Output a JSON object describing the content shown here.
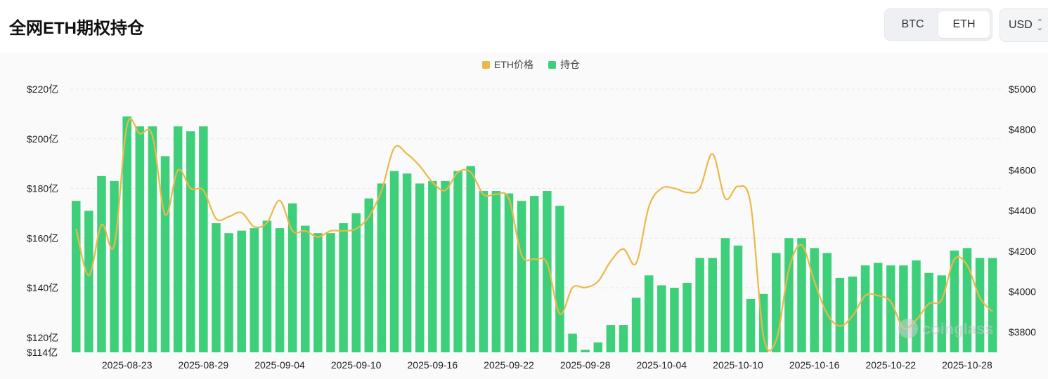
{
  "header": {
    "title": "全网ETH期权持仓",
    "tabs": [
      {
        "label": "BTC",
        "active": false
      },
      {
        "label": "ETH",
        "active": true
      }
    ],
    "currency": "USD"
  },
  "watermark": "coinglass",
  "chart_data": {
    "type": "bar+line",
    "legend": [
      {
        "name": "ETH价格",
        "color": "#e9b949"
      },
      {
        "name": "持仓",
        "color": "#3ecf7a"
      }
    ],
    "left_axis": {
      "ticks": [
        {
          "value": 114,
          "label": "$114亿"
        },
        {
          "value": 120,
          "label": "$120亿"
        },
        {
          "value": 140,
          "label": "$140亿"
        },
        {
          "value": 160,
          "label": "$160亿"
        },
        {
          "value": 180,
          "label": "$180亿"
        },
        {
          "value": 200,
          "label": "$200亿"
        },
        {
          "value": 220,
          "label": "$220亿"
        }
      ],
      "range": [
        114,
        220
      ]
    },
    "right_axis": {
      "ticks": [
        {
          "value": 3800,
          "label": "$3800"
        },
        {
          "value": 4000,
          "label": "$4000"
        },
        {
          "value": 4200,
          "label": "$4200"
        },
        {
          "value": 4400,
          "label": "$4400"
        },
        {
          "value": 4600,
          "label": "$4600"
        },
        {
          "value": 4800,
          "label": "$4800"
        },
        {
          "value": 5000,
          "label": "$5000"
        }
      ],
      "range": [
        3700,
        5000
      ]
    },
    "x_labels": [
      {
        "index": 4,
        "label": "2025-08-23"
      },
      {
        "index": 10,
        "label": "2025-08-29"
      },
      {
        "index": 16,
        "label": "2025-09-04"
      },
      {
        "index": 22,
        "label": "2025-09-10"
      },
      {
        "index": 28,
        "label": "2025-09-16"
      },
      {
        "index": 34,
        "label": "2025-09-22"
      },
      {
        "index": 40,
        "label": "2025-09-28"
      },
      {
        "index": 46,
        "label": "2025-10-04"
      },
      {
        "index": 52,
        "label": "2025-10-10"
      },
      {
        "index": 58,
        "label": "2025-10-16"
      },
      {
        "index": 64,
        "label": "2025-10-22"
      },
      {
        "index": 70,
        "label": "2025-10-28"
      }
    ],
    "series": [
      {
        "name": "持仓",
        "type": "bar",
        "axis": "left",
        "values": [
          175,
          171,
          185,
          183,
          209,
          205,
          205,
          193,
          205,
          203,
          205,
          166,
          162,
          163,
          164,
          167,
          164,
          174,
          165,
          162,
          162,
          166,
          170,
          176,
          182,
          187,
          186,
          182,
          183,
          183,
          187,
          189,
          179,
          179,
          178,
          175,
          177,
          179,
          173,
          121.5,
          115,
          118,
          125,
          125,
          136,
          145,
          141,
          140,
          142,
          152,
          152,
          160,
          157,
          135.5,
          137.5,
          154,
          160,
          160,
          156,
          154,
          144,
          144.5,
          149,
          150,
          149,
          149,
          151,
          146,
          145,
          155,
          156,
          152,
          152
        ]
      },
      {
        "name": "ETH价格",
        "type": "line",
        "axis": "right",
        "values": [
          4310,
          4080,
          4330,
          4230,
          4820,
          4780,
          4770,
          4380,
          4600,
          4510,
          4500,
          4360,
          4370,
          4390,
          4320,
          4340,
          4450,
          4300,
          4300,
          4270,
          4300,
          4300,
          4310,
          4370,
          4500,
          4710,
          4680,
          4620,
          4540,
          4500,
          4590,
          4590,
          4480,
          4480,
          4460,
          4180,
          4160,
          4140,
          3890,
          4020,
          4020,
          4050,
          4150,
          4210,
          4140,
          4420,
          4510,
          4510,
          4490,
          4510,
          4680,
          4460,
          4520,
          4430,
          3780,
          3760,
          4110,
          4230,
          4050,
          3890,
          3830,
          3880,
          3980,
          3980,
          3950,
          3820,
          3860,
          3940,
          3960,
          4160,
          4130,
          3970,
          3900
        ]
      }
    ],
    "grid": "horizontal dashed"
  }
}
